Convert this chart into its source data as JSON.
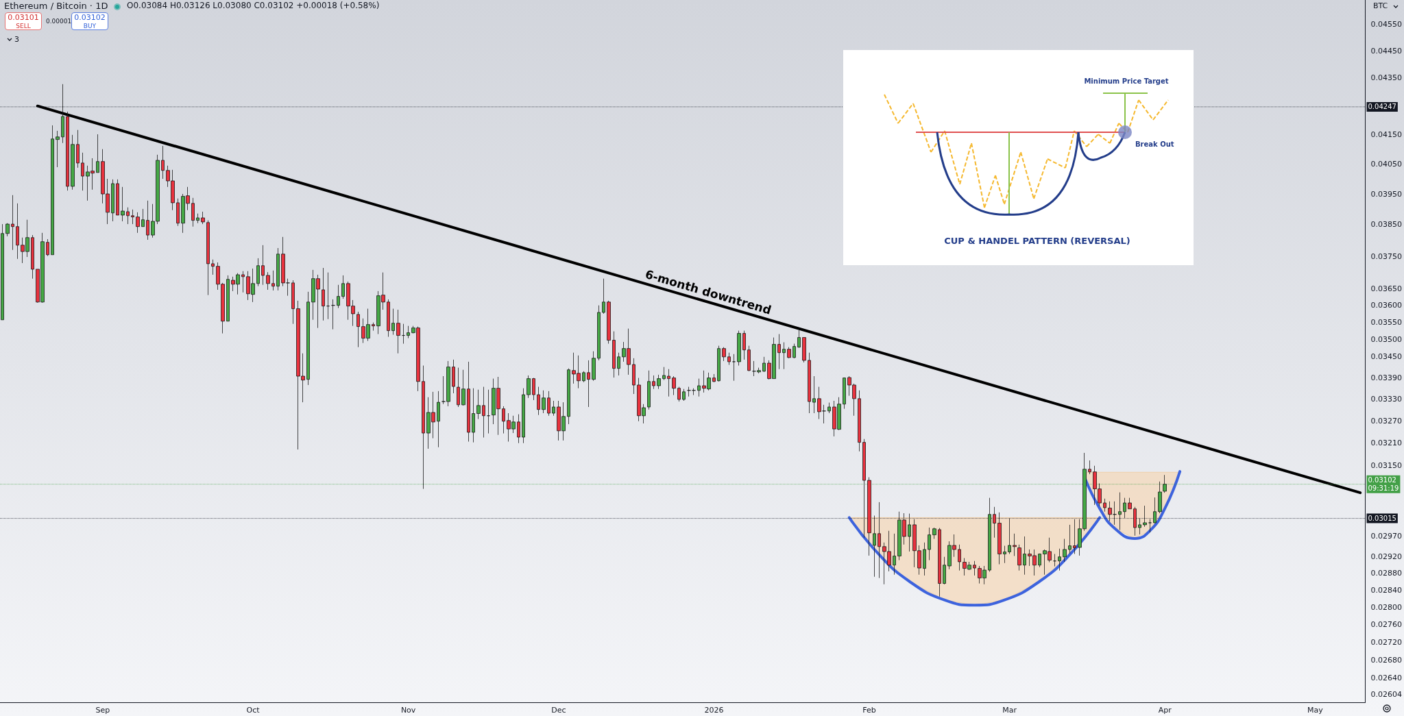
{
  "chart_data": {
    "type": "candlestick",
    "title": "Ethereum / Bitcoin · 1D",
    "subtitle": "O0.03084 H0.03126 L0.03080 C0.03102 +0.00018 (+0.58%)",
    "ylabel": "BTC",
    "annotations": [
      "0.03101",
      "SELL",
      "0.00001",
      "0.03102",
      "BUY",
      "3",
      "6-month downtrend",
      "Minimum Price Target",
      "Break Out",
      "CUP & HANDEL PATTERN (REVERSAL)"
    ],
    "log": "y",
    "xlim": [
      "2025-08-11T12:00",
      "2026-05-11"
    ],
    "xticks": [
      {
        "value": "2025-09-01",
        "label": "Sep"
      },
      {
        "value": "2025-10-01",
        "label": "Oct"
      },
      {
        "value": "2025-11-01",
        "label": "Nov"
      },
      {
        "value": "2025-12-01",
        "label": "Dec"
      },
      {
        "value": "2026-01-01",
        "label": "2026"
      },
      {
        "value": "2026-02-01",
        "label": "Feb"
      },
      {
        "value": "2026-03-01",
        "label": "Mar"
      },
      {
        "value": "2026-04-01",
        "label": "Apr"
      },
      {
        "value": "2026-05-01",
        "label": "May"
      }
    ],
    "ylim": [
      0.02587,
      0.04642
    ],
    "yticks": [
      {
        "value": 0.0455,
        "label": "0.04550"
      },
      {
        "value": 0.0445,
        "label": "0.04450"
      },
      {
        "value": 0.0435,
        "label": "0.04350"
      },
      {
        "value": 0.0415,
        "label": "0.04150"
      },
      {
        "value": 0.0405,
        "label": "0.04050"
      },
      {
        "value": 0.0395,
        "label": "0.03950"
      },
      {
        "value": 0.0385,
        "label": "0.03850"
      },
      {
        "value": 0.0375,
        "label": "0.03750"
      },
      {
        "value": 0.0365,
        "label": "0.03650"
      },
      {
        "value": 0.036,
        "label": "0.03600"
      },
      {
        "value": 0.0355,
        "label": "0.03550"
      },
      {
        "value": 0.035,
        "label": "0.03500"
      },
      {
        "value": 0.0345,
        "label": "0.03450"
      },
      {
        "value": 0.0339,
        "label": "0.03390"
      },
      {
        "value": 0.0333,
        "label": "0.03330"
      },
      {
        "value": 0.0327,
        "label": "0.03270"
      },
      {
        "value": 0.0321,
        "label": "0.03210"
      },
      {
        "value": 0.0315,
        "label": "0.03150"
      },
      {
        "value": 0.0297,
        "label": "0.02970"
      },
      {
        "value": 0.0292,
        "label": "0.02920"
      },
      {
        "value": 0.0288,
        "label": "0.02880"
      },
      {
        "value": 0.0284,
        "label": "0.02840"
      },
      {
        "value": 0.028,
        "label": "0.02800"
      },
      {
        "value": 0.0276,
        "label": "0.02760"
      },
      {
        "value": 0.0272,
        "label": "0.02720"
      },
      {
        "value": 0.0268,
        "label": "0.02680"
      },
      {
        "value": 0.0264,
        "label": "0.02640"
      },
      0.02604
    ],
    "ref_lines": [
      {
        "axis": "y",
        "value": 0.04247,
        "label": "0.04247",
        "color": "#131722",
        "line_style": "dotted"
      },
      {
        "axis": "y",
        "value": 0.03102,
        "label": "0.03102\n09:31:19",
        "color": "#43a047",
        "line_style": "dotted"
      },
      {
        "axis": "y",
        "value": 0.03015,
        "label": "0.03015",
        "color": "#131722",
        "line_style": "dotted"
      }
    ],
    "x": [
      "2025-08-12",
      "2025-08-13",
      "2025-08-14",
      "2025-08-15",
      "2025-08-16",
      "2025-08-17",
      "2025-08-18",
      "2025-08-19",
      "2025-08-20",
      "2025-08-21",
      "2025-08-22",
      "2025-08-23",
      "2025-08-24",
      "2025-08-25",
      "2025-08-26",
      "2025-08-27",
      "2025-08-28",
      "2025-08-29",
      "2025-08-30",
      "2025-08-31",
      "2025-09-01",
      "2025-09-02",
      "2025-09-03",
      "2025-09-04",
      "2025-09-05",
      "2025-09-06",
      "2025-09-07",
      "2025-09-08",
      "2025-09-09",
      "2025-09-10",
      "2025-09-11",
      "2025-09-12",
      "2025-09-13",
      "2025-09-14",
      "2025-09-15",
      "2025-09-16",
      "2025-09-17",
      "2025-09-18",
      "2025-09-19",
      "2025-09-20",
      "2025-09-21",
      "2025-09-22",
      "2025-09-23",
      "2025-09-24",
      "2025-09-25",
      "2025-09-26",
      "2025-09-27",
      "2025-09-28",
      "2025-09-29",
      "2025-09-30",
      "2025-10-01",
      "2025-10-02",
      "2025-10-03",
      "2025-10-04",
      "2025-10-05",
      "2025-10-06",
      "2025-10-07",
      "2025-10-08",
      "2025-10-09",
      "2025-10-10",
      "2025-10-11",
      "2025-10-12",
      "2025-10-13",
      "2025-10-14",
      "2025-10-15",
      "2025-10-16",
      "2025-10-17",
      "2025-10-18",
      "2025-10-19",
      "2025-10-20",
      "2025-10-21",
      "2025-10-22",
      "2025-10-23",
      "2025-10-24",
      "2025-10-25",
      "2025-10-26",
      "2025-10-27",
      "2025-10-28",
      "2025-10-29",
      "2025-10-30",
      "2025-10-31",
      "2025-11-01",
      "2025-11-02",
      "2025-11-03",
      "2025-11-04",
      "2025-11-05",
      "2025-11-06",
      "2025-11-07",
      "2025-11-08",
      "2025-11-09",
      "2025-11-10",
      "2025-11-11",
      "2025-11-12",
      "2025-11-13",
      "2025-11-14",
      "2025-11-15",
      "2025-11-16",
      "2025-11-17",
      "2025-11-18",
      "2025-11-19",
      "2025-11-20",
      "2025-11-21",
      "2025-11-22",
      "2025-11-23",
      "2025-11-24",
      "2025-11-25",
      "2025-11-26",
      "2025-11-27",
      "2025-11-28",
      "2025-11-29",
      "2025-11-30",
      "2025-12-01",
      "2025-12-02",
      "2025-12-03",
      "2025-12-04",
      "2025-12-05",
      "2025-12-06",
      "2025-12-07",
      "2025-12-08",
      "2025-12-09",
      "2025-12-10",
      "2025-12-11",
      "2025-12-12",
      "2025-12-13",
      "2025-12-14",
      "2025-12-15",
      "2025-12-16",
      "2025-12-17",
      "2025-12-18",
      "2025-12-19",
      "2025-12-20",
      "2025-12-21",
      "2025-12-22",
      "2025-12-23",
      "2025-12-24",
      "2025-12-25",
      "2025-12-26",
      "2025-12-27",
      "2025-12-28",
      "2025-12-29",
      "2025-12-30",
      "2025-12-31",
      "2026-01-01",
      "2026-01-02",
      "2026-01-03",
      "2026-01-04",
      "2026-01-05",
      "2026-01-06",
      "2026-01-07",
      "2026-01-08",
      "2026-01-09",
      "2026-01-10",
      "2026-01-11",
      "2026-01-12",
      "2026-01-13",
      "2026-01-14",
      "2026-01-15",
      "2026-01-16",
      "2026-01-17",
      "2026-01-18",
      "2026-01-19",
      "2026-01-20",
      "2026-01-21",
      "2026-01-22",
      "2026-01-23",
      "2026-01-24",
      "2026-01-25",
      "2026-01-26",
      "2026-01-27",
      "2026-01-28",
      "2026-01-29",
      "2026-01-30",
      "2026-01-31",
      "2026-02-01",
      "2026-02-02",
      "2026-02-03",
      "2026-02-04",
      "2026-02-05",
      "2026-02-06",
      "2026-02-07",
      "2026-02-08",
      "2026-02-09",
      "2026-02-10",
      "2026-02-11",
      "2026-02-12",
      "2026-02-13",
      "2026-02-14",
      "2026-02-15",
      "2026-02-16",
      "2026-02-17",
      "2026-02-18",
      "2026-02-19",
      "2026-02-20",
      "2026-02-21",
      "2026-02-22",
      "2026-02-23",
      "2026-02-24",
      "2026-02-25",
      "2026-02-26",
      "2026-02-27",
      "2026-02-28",
      "2026-03-01",
      "2026-03-02",
      "2026-03-03",
      "2026-03-04",
      "2026-03-05",
      "2026-03-06",
      "2026-03-07",
      "2026-03-08",
      "2026-03-09",
      "2026-03-10",
      "2026-03-11",
      "2026-03-12",
      "2026-03-13",
      "2026-03-14",
      "2026-03-15",
      "2026-03-16",
      "2026-03-17",
      "2026-03-18",
      "2026-03-19",
      "2026-03-20",
      "2026-03-21",
      "2026-03-22",
      "2026-03-23",
      "2026-03-24",
      "2026-03-25",
      "2026-03-26",
      "2026-03-27",
      "2026-03-28",
      "2026-03-29",
      "2026-03-30",
      "2026-03-31",
      "2026-04-01"
    ],
    "ohlc": [
      [
        0.03557,
        0.03852,
        0.03557,
        0.03822
      ],
      [
        0.03822,
        0.03855,
        0.03813,
        0.03852
      ],
      [
        0.03852,
        0.03946,
        0.0377,
        0.03844
      ],
      [
        0.03844,
        0.03919,
        0.03742,
        0.03785
      ],
      [
        0.03785,
        0.03809,
        0.03729,
        0.03765
      ],
      [
        0.03765,
        0.03866,
        0.03748,
        0.03809
      ],
      [
        0.03809,
        0.03817,
        0.03681,
        0.0371
      ],
      [
        0.0371,
        0.0371,
        0.03608,
        0.0361
      ],
      [
        0.0361,
        0.03824,
        0.03608,
        0.03796
      ],
      [
        0.03794,
        0.03804,
        0.03751,
        0.03755
      ],
      [
        0.03755,
        0.04182,
        0.03755,
        0.04135
      ],
      [
        0.04133,
        0.04163,
        0.04039,
        0.04142
      ],
      [
        0.04142,
        0.04328,
        0.04121,
        0.04213
      ],
      [
        0.04213,
        0.0423,
        0.03961,
        0.03975
      ],
      [
        0.03975,
        0.04149,
        0.03964,
        0.04116
      ],
      [
        0.04116,
        0.04166,
        0.04037,
        0.04053
      ],
      [
        0.04053,
        0.04088,
        0.03961,
        0.04009
      ],
      [
        0.04009,
        0.04044,
        0.03928,
        0.04023
      ],
      [
        0.04026,
        0.04069,
        0.03964,
        0.04019
      ],
      [
        0.04021,
        0.04151,
        0.04021,
        0.04058
      ],
      [
        0.04058,
        0.041,
        0.03919,
        0.0395
      ],
      [
        0.0395,
        0.04,
        0.03852,
        0.0389
      ],
      [
        0.03888,
        0.03998,
        0.03861,
        0.03984
      ],
      [
        0.03984,
        0.03998,
        0.03881,
        0.03881
      ],
      [
        0.03881,
        0.03973,
        0.03861,
        0.03894
      ],
      [
        0.03892,
        0.03906,
        0.03852,
        0.03879
      ],
      [
        0.03879,
        0.03899,
        0.03852,
        0.03875
      ],
      [
        0.03875,
        0.0389,
        0.03824,
        0.03844
      ],
      [
        0.03844,
        0.03901,
        0.03844,
        0.03866
      ],
      [
        0.03864,
        0.03928,
        0.03802,
        0.03817
      ],
      [
        0.03817,
        0.03917,
        0.03809,
        0.03861
      ],
      [
        0.03861,
        0.04081,
        0.03852,
        0.04062
      ],
      [
        0.04062,
        0.04111,
        0.04,
        0.04028
      ],
      [
        0.04028,
        0.04044,
        0.03973,
        0.03993
      ],
      [
        0.03993,
        0.0403,
        0.03897,
        0.03921
      ],
      [
        0.03921,
        0.03935,
        0.03846,
        0.03855
      ],
      [
        0.03855,
        0.0395,
        0.03824,
        0.03942
      ],
      [
        0.03944,
        0.03973,
        0.03897,
        0.03919
      ],
      [
        0.03919,
        0.03937,
        0.03844,
        0.03864
      ],
      [
        0.03864,
        0.03886,
        0.03855,
        0.03872
      ],
      [
        0.03872,
        0.03892,
        0.03852,
        0.03859
      ],
      [
        0.03857,
        0.03864,
        0.03631,
        0.03727
      ],
      [
        0.03727,
        0.0374,
        0.03693,
        0.03719
      ],
      [
        0.03719,
        0.03731,
        0.03647,
        0.03664
      ],
      [
        0.03664,
        0.03668,
        0.03517,
        0.03553
      ],
      [
        0.03553,
        0.03691,
        0.03553,
        0.03679
      ],
      [
        0.03676,
        0.03687,
        0.03643,
        0.03664
      ],
      [
        0.03664,
        0.03698,
        0.03633,
        0.03693
      ],
      [
        0.03693,
        0.03704,
        0.03639,
        0.03687
      ],
      [
        0.03687,
        0.03704,
        0.03616,
        0.03635
      ],
      [
        0.03633,
        0.03712,
        0.0361,
        0.03666
      ],
      [
        0.03666,
        0.03744,
        0.03658,
        0.03721
      ],
      [
        0.03721,
        0.03785,
        0.03662,
        0.03691
      ],
      [
        0.03691,
        0.03701,
        0.03647,
        0.03666
      ],
      [
        0.03666,
        0.03706,
        0.03645,
        0.03658
      ],
      [
        0.03658,
        0.03776,
        0.03645,
        0.03757
      ],
      [
        0.03757,
        0.03811,
        0.03658,
        0.03668
      ],
      [
        0.03668,
        0.03681,
        0.03629,
        0.03668
      ],
      [
        0.03668,
        0.03676,
        0.03545,
        0.0359
      ],
      [
        0.0359,
        0.03614,
        0.03193,
        0.03394
      ],
      [
        0.03394,
        0.03459,
        0.03321,
        0.03383
      ],
      [
        0.03385,
        0.03641,
        0.03369,
        0.0361
      ],
      [
        0.0361,
        0.03708,
        0.03557,
        0.03681
      ],
      [
        0.03681,
        0.03693,
        0.03533,
        0.03649
      ],
      [
        0.03647,
        0.03714,
        0.03555,
        0.03598
      ],
      [
        0.03598,
        0.037,
        0.03559,
        0.03598
      ],
      [
        0.036,
        0.03618,
        0.03529,
        0.036
      ],
      [
        0.036,
        0.03662,
        0.03592,
        0.03627
      ],
      [
        0.03627,
        0.03691,
        0.0362,
        0.03666
      ],
      [
        0.03666,
        0.03672,
        0.03557,
        0.03598
      ],
      [
        0.03598,
        0.03616,
        0.03539,
        0.03575
      ],
      [
        0.03573,
        0.03581,
        0.03477,
        0.03537
      ],
      [
        0.03537,
        0.03561,
        0.03489,
        0.03503
      ],
      [
        0.03503,
        0.0359,
        0.03495,
        0.03543
      ],
      [
        0.03543,
        0.03549,
        0.03525,
        0.03539
      ],
      [
        0.03539,
        0.03643,
        0.03515,
        0.03629
      ],
      [
        0.03631,
        0.037,
        0.03587,
        0.0361
      ],
      [
        0.0361,
        0.03618,
        0.03507,
        0.03525
      ],
      [
        0.03525,
        0.0359,
        0.03513,
        0.03547
      ],
      [
        0.03547,
        0.03587,
        0.03459,
        0.03511
      ],
      [
        0.03511,
        0.03545,
        0.03487,
        0.03511
      ],
      [
        0.03511,
        0.03539,
        0.03503,
        0.03519
      ],
      [
        0.03519,
        0.03539,
        0.03517,
        0.03533
      ],
      [
        0.03533,
        0.03537,
        0.03352,
        0.03379
      ],
      [
        0.03379,
        0.03424,
        0.0309,
        0.03237
      ],
      [
        0.03237,
        0.03335,
        0.03195,
        0.03293
      ],
      [
        0.03293,
        0.0335,
        0.03223,
        0.03267
      ],
      [
        0.03269,
        0.03352,
        0.03199,
        0.03321
      ],
      [
        0.03323,
        0.03394,
        0.03316,
        0.03323
      ],
      [
        0.03323,
        0.03437,
        0.0331,
        0.0342
      ],
      [
        0.0342,
        0.03441,
        0.03346,
        0.03365
      ],
      [
        0.03363,
        0.03418,
        0.03308,
        0.03314
      ],
      [
        0.03314,
        0.03412,
        0.03312,
        0.03358
      ],
      [
        0.03358,
        0.03435,
        0.03214,
        0.03239
      ],
      [
        0.03239,
        0.0336,
        0.03212,
        0.0329
      ],
      [
        0.0329,
        0.03356,
        0.03275,
        0.03312
      ],
      [
        0.03312,
        0.03364,
        0.03225,
        0.03284
      ],
      [
        0.03284,
        0.03356,
        0.03236,
        0.03284
      ],
      [
        0.03286,
        0.03387,
        0.03261,
        0.0336
      ],
      [
        0.0336,
        0.03392,
        0.03232,
        0.03303
      ],
      [
        0.03303,
        0.0331,
        0.03236,
        0.03269
      ],
      [
        0.03271,
        0.03291,
        0.03214,
        0.03248
      ],
      [
        0.03248,
        0.03284,
        0.03237,
        0.03267
      ],
      [
        0.03267,
        0.03288,
        0.0321,
        0.03226
      ],
      [
        0.03226,
        0.0336,
        0.0321,
        0.03342
      ],
      [
        0.03342,
        0.03396,
        0.03333,
        0.03387
      ],
      [
        0.03387,
        0.03389,
        0.03327,
        0.03342
      ],
      [
        0.03342,
        0.03364,
        0.03286,
        0.03301
      ],
      [
        0.03301,
        0.03354,
        0.03291,
        0.03333
      ],
      [
        0.03333,
        0.03352,
        0.03284,
        0.03291
      ],
      [
        0.03291,
        0.03325,
        0.03284,
        0.03308
      ],
      [
        0.03308,
        0.03325,
        0.03217,
        0.03243
      ],
      [
        0.03243,
        0.03321,
        0.03217,
        0.03282
      ],
      [
        0.03282,
        0.03416,
        0.03261,
        0.03412
      ],
      [
        0.0341,
        0.03461,
        0.03373,
        0.034
      ],
      [
        0.03402,
        0.03453,
        0.0336,
        0.03381
      ],
      [
        0.03381,
        0.03408,
        0.03377,
        0.03404
      ],
      [
        0.03404,
        0.03439,
        0.03308,
        0.03385
      ],
      [
        0.03385,
        0.03465,
        0.03381,
        0.03445
      ],
      [
        0.03445,
        0.036,
        0.03439,
        0.03579
      ],
      [
        0.03579,
        0.03681,
        0.03575,
        0.0361
      ],
      [
        0.0361,
        0.03614,
        0.03487,
        0.03497
      ],
      [
        0.03497,
        0.03523,
        0.0339,
        0.03416
      ],
      [
        0.03416,
        0.03461,
        0.03396,
        0.03449
      ],
      [
        0.03449,
        0.03492,
        0.03435,
        0.03473
      ],
      [
        0.03473,
        0.03531,
        0.03398,
        0.03427
      ],
      [
        0.03427,
        0.03445,
        0.03344,
        0.03369
      ],
      [
        0.03369,
        0.03389,
        0.03269,
        0.03284
      ],
      [
        0.03284,
        0.03316,
        0.03263,
        0.03306
      ],
      [
        0.03308,
        0.0341,
        0.03301,
        0.03379
      ],
      [
        0.03379,
        0.03396,
        0.03358,
        0.03367
      ],
      [
        0.03367,
        0.03398,
        0.03358,
        0.03387
      ],
      [
        0.03387,
        0.0342,
        0.03383,
        0.03396
      ],
      [
        0.03394,
        0.03414,
        0.03337,
        0.03387
      ],
      [
        0.03389,
        0.03394,
        0.03341,
        0.0336
      ],
      [
        0.0336,
        0.03364,
        0.03323,
        0.03329
      ],
      [
        0.03329,
        0.03358,
        0.03325,
        0.0335
      ],
      [
        0.03354,
        0.03364,
        0.03337,
        0.03354
      ],
      [
        0.03354,
        0.0336,
        0.03341,
        0.03354
      ],
      [
        0.03354,
        0.03387,
        0.03337,
        0.03367
      ],
      [
        0.03367,
        0.0341,
        0.03348,
        0.0336
      ],
      [
        0.03358,
        0.03404,
        0.03354,
        0.03389
      ],
      [
        0.03389,
        0.034,
        0.03377,
        0.03379
      ],
      [
        0.03381,
        0.03481,
        0.03379,
        0.03473
      ],
      [
        0.03473,
        0.03477,
        0.03437,
        0.03449
      ],
      [
        0.03449,
        0.03461,
        0.03426,
        0.03435
      ],
      [
        0.03435,
        0.03457,
        0.03381,
        0.03435
      ],
      [
        0.03435,
        0.03525,
        0.03424,
        0.03517
      ],
      [
        0.03517,
        0.03525,
        0.03441,
        0.03469
      ],
      [
        0.03469,
        0.03481,
        0.03408,
        0.0341
      ],
      [
        0.03408,
        0.03437,
        0.03394,
        0.03408
      ],
      [
        0.03406,
        0.03418,
        0.03402,
        0.0341
      ],
      [
        0.03408,
        0.03449,
        0.03406,
        0.03431
      ],
      [
        0.03431,
        0.03439,
        0.03385,
        0.03387
      ],
      [
        0.03387,
        0.03505,
        0.03387,
        0.03485
      ],
      [
        0.03485,
        0.03515,
        0.03414,
        0.03461
      ],
      [
        0.03461,
        0.03491,
        0.03414,
        0.03471
      ],
      [
        0.03471,
        0.03477,
        0.03445,
        0.03447
      ],
      [
        0.03447,
        0.03487,
        0.03445,
        0.03479
      ],
      [
        0.03477,
        0.03529,
        0.03475,
        0.03505
      ],
      [
        0.03505,
        0.03505,
        0.03433,
        0.03439
      ],
      [
        0.03439,
        0.03461,
        0.03291,
        0.03323
      ],
      [
        0.03321,
        0.03394,
        0.03291,
        0.03331
      ],
      [
        0.03331,
        0.03364,
        0.03275,
        0.03295
      ],
      [
        0.03297,
        0.03314,
        0.03263,
        0.03297
      ],
      [
        0.03297,
        0.0332,
        0.03291,
        0.03308
      ],
      [
        0.03308,
        0.03325,
        0.03228,
        0.03248
      ],
      [
        0.03247,
        0.03335,
        0.03245,
        0.03316
      ],
      [
        0.03316,
        0.0339,
        0.03303,
        0.03389
      ],
      [
        0.0339,
        0.03394,
        0.03339,
        0.03369
      ],
      [
        0.03369,
        0.03373,
        0.03284,
        0.03331
      ],
      [
        0.03331,
        0.03354,
        0.03188,
        0.03212
      ],
      [
        0.03212,
        0.03221,
        0.02967,
        0.03112
      ],
      [
        0.03112,
        0.0312,
        0.02923,
        0.02979
      ],
      [
        0.02948,
        0.03022,
        0.02872,
        0.02977
      ],
      [
        0.02977,
        0.03056,
        0.02869,
        0.02945
      ],
      [
        0.02945,
        0.02955,
        0.02854,
        0.02933
      ],
      [
        0.02933,
        0.02984,
        0.02885,
        0.029
      ],
      [
        0.029,
        0.02977,
        0.02877,
        0.02922
      ],
      [
        0.02922,
        0.03032,
        0.02912,
        0.03011
      ],
      [
        0.03011,
        0.03028,
        0.0295,
        0.0297
      ],
      [
        0.0297,
        0.03027,
        0.02933,
        0.02999
      ],
      [
        0.02999,
        0.03013,
        0.02895,
        0.02935
      ],
      [
        0.02935,
        0.02948,
        0.02877,
        0.02893
      ],
      [
        0.02892,
        0.02955,
        0.02875,
        0.02938
      ],
      [
        0.02938,
        0.02992,
        0.02912,
        0.02974
      ],
      [
        0.02974,
        0.02992,
        0.02964,
        0.02989
      ],
      [
        0.02987,
        0.02991,
        0.02825,
        0.02856
      ],
      [
        0.02856,
        0.0292,
        0.02854,
        0.029
      ],
      [
        0.02898,
        0.02958,
        0.0289,
        0.02948
      ],
      [
        0.02948,
        0.02975,
        0.0292,
        0.02938
      ],
      [
        0.02938,
        0.0295,
        0.02887,
        0.02908
      ],
      [
        0.02907,
        0.02917,
        0.02875,
        0.02892
      ],
      [
        0.0289,
        0.02908,
        0.02888,
        0.029
      ],
      [
        0.029,
        0.0291,
        0.02875,
        0.02893
      ],
      [
        0.02892,
        0.02898,
        0.02856,
        0.02869
      ],
      [
        0.02869,
        0.02898,
        0.02854,
        0.02888
      ],
      [
        0.02888,
        0.03067,
        0.02884,
        0.03025
      ],
      [
        0.03025,
        0.03044,
        0.02967,
        0.03003
      ],
      [
        0.03003,
        0.0303,
        0.02902,
        0.02927
      ],
      [
        0.02927,
        0.02947,
        0.02905,
        0.02932
      ],
      [
        0.02932,
        0.03016,
        0.02927,
        0.02948
      ],
      [
        0.02948,
        0.02977,
        0.02922,
        0.02945
      ],
      [
        0.02942,
        0.0295,
        0.02887,
        0.029
      ],
      [
        0.029,
        0.0297,
        0.02877,
        0.02927
      ],
      [
        0.02927,
        0.02938,
        0.02898,
        0.02922
      ],
      [
        0.02923,
        0.02938,
        0.02875,
        0.029
      ],
      [
        0.029,
        0.02928,
        0.02895,
        0.02927
      ],
      [
        0.02927,
        0.02938,
        0.02877,
        0.02935
      ],
      [
        0.02933,
        0.02967,
        0.02907,
        0.02912
      ],
      [
        0.0291,
        0.02927,
        0.02897,
        0.0291
      ],
      [
        0.0291,
        0.0294,
        0.02887,
        0.0292
      ],
      [
        0.0292,
        0.02964,
        0.02908,
        0.02938
      ],
      [
        0.02938,
        0.02999,
        0.02928,
        0.02947
      ],
      [
        0.02947,
        0.03013,
        0.02927,
        0.02942
      ],
      [
        0.02943,
        0.03013,
        0.02923,
        0.02989
      ],
      [
        0.02989,
        0.03184,
        0.02984,
        0.03141
      ],
      [
        0.03141,
        0.03164,
        0.03128,
        0.03134
      ],
      [
        0.03134,
        0.0315,
        0.03049,
        0.0309
      ],
      [
        0.0309,
        0.03104,
        0.03046,
        0.03054
      ],
      [
        0.03054,
        0.03065,
        0.03032,
        0.03042
      ],
      [
        0.03041,
        0.03058,
        0.03008,
        0.03025
      ],
      [
        0.03025,
        0.03058,
        0.02999,
        0.03025
      ],
      [
        0.03025,
        0.03081,
        0.02986,
        0.03032
      ],
      [
        0.03032,
        0.03067,
        0.03016,
        0.03054
      ],
      [
        0.03054,
        0.03067,
        0.03039,
        0.03039
      ],
      [
        0.03039,
        0.03044,
        0.02972,
        0.02992
      ],
      [
        0.02992,
        0.03016,
        0.02975,
        0.02999
      ],
      [
        0.02999,
        0.03047,
        0.02994,
        0.03004
      ],
      [
        0.03004,
        0.03013,
        0.0298,
        0.03004
      ],
      [
        0.03004,
        0.03068,
        0.03003,
        0.03032
      ],
      [
        0.03032,
        0.03109,
        0.03028,
        0.03082
      ],
      [
        0.03084,
        0.03126,
        0.0308,
        0.03102
      ]
    ],
    "series": [
      {
        "type": "line",
        "color": "#000000",
        "x": [
          "2025-08-19",
          "2026-05-10"
        ],
        "values": [
          0.0425,
          0.0308
        ]
      },
      {
        "type": "line",
        "color": "#3d63dd",
        "x": [
          "2026-01-28",
          "2026-02-03",
          "2026-02-09",
          "2026-02-16",
          "2026-02-22",
          "2026-02-28",
          "2026-03-07",
          "2026-03-13",
          "2026-03-19"
        ],
        "values": [
          0.03017,
          0.02925,
          0.02861,
          0.02817,
          0.02805,
          0.02817,
          0.02861,
          0.02925,
          0.03017
        ],
        "lower": [
          0.03017,
          0.02925,
          0.02861,
          0.02817,
          0.02805,
          0.02817,
          0.02861,
          0.02925,
          0.03017
        ],
        "upper": [
          0.03017,
          0.03017,
          0.03017,
          0.03017,
          0.03017,
          0.03017,
          0.03017,
          0.03017,
          0.03017
        ]
      },
      {
        "type": "line",
        "color": "#3d63dd",
        "x": [
          "2026-03-16",
          "2026-03-19",
          "2026-03-22",
          "2026-03-26",
          "2026-03-29",
          "2026-04-01",
          "2026-04-04"
        ],
        "values": [
          0.03119,
          0.0304,
          0.0299,
          0.02965,
          0.02984,
          0.0304,
          0.03135
        ],
        "lower": [
          0.03119,
          0.0304,
          0.0299,
          0.02965,
          0.02984,
          0.0304,
          0.03135
        ],
        "upper": [
          0.03133,
          0.03133,
          0.03133,
          0.03133,
          0.03133,
          0.03133,
          0.03133
        ]
      }
    ]
  }
}
